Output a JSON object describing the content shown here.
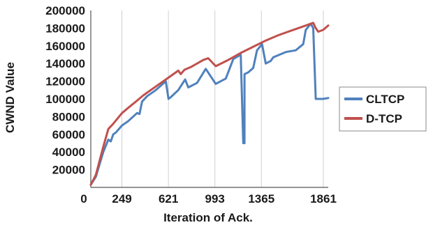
{
  "chart_data": {
    "type": "line",
    "xlabel": "Iteration of Ack.",
    "ylabel": "CWND Value",
    "x_ticks": [
      0,
      249,
      621,
      993,
      1365,
      1861
    ],
    "x_tick_labels": [
      "0",
      "249",
      "621",
      "993",
      "1365",
      "1861"
    ],
    "y_ticks": [
      20000,
      40000,
      60000,
      80000,
      100000,
      120000,
      140000,
      160000,
      180000,
      200000
    ],
    "y_tick_labels": [
      "20000",
      "40000",
      "60000",
      "80000",
      "100000",
      "120000",
      "140000",
      "160000",
      "180000",
      "200000"
    ],
    "xlim": [
      0,
      1900
    ],
    "ylim": [
      0,
      200000
    ],
    "grid": "vertical",
    "legend_position": "right",
    "series": [
      {
        "name": "CLTCP",
        "color": "#4f81bd",
        "x": [
          0,
          40,
          100,
          140,
          160,
          180,
          200,
          250,
          300,
          370,
          390,
          410,
          450,
          520,
          560,
          600,
          622,
          640,
          700,
          755,
          780,
          850,
          920,
          1000,
          1040,
          1080,
          1140,
          1200,
          1220,
          1230,
          1230,
          1230,
          1260,
          1300,
          1330,
          1370,
          1400,
          1440,
          1460,
          1560,
          1640,
          1700,
          1720,
          1760,
          1780,
          1800,
          1860,
          1900
        ],
        "y": [
          3000,
          12000,
          40000,
          54000,
          52000,
          60000,
          62000,
          70000,
          75000,
          84000,
          83000,
          97000,
          103000,
          110000,
          115000,
          120000,
          100000,
          102000,
          110000,
          122000,
          113000,
          118000,
          134000,
          117000,
          120000,
          123000,
          145000,
          150000,
          50000,
          50000,
          120000,
          128000,
          130000,
          135000,
          155000,
          162000,
          140000,
          143000,
          147000,
          153000,
          155000,
          162000,
          178000,
          185000,
          180000,
          100000,
          100000,
          101000
        ]
      },
      {
        "name": "D-TCP",
        "color": "#c0504d",
        "x": [
          0,
          40,
          100,
          140,
          180,
          250,
          300,
          370,
          420,
          520,
          600,
          700,
          720,
          750,
          800,
          900,
          940,
          1000,
          1100,
          1200,
          1300,
          1400,
          1500,
          1600,
          1700,
          1780,
          1800,
          1820,
          1860,
          1900
        ],
        "y": [
          3000,
          14000,
          46000,
          66000,
          72000,
          84000,
          90000,
          98000,
          104000,
          114000,
          122000,
          132000,
          128000,
          133000,
          136000,
          144000,
          146000,
          137000,
          144000,
          152000,
          159000,
          166000,
          172000,
          177000,
          182000,
          186000,
          180000,
          176000,
          178000,
          183000
        ]
      }
    ]
  }
}
